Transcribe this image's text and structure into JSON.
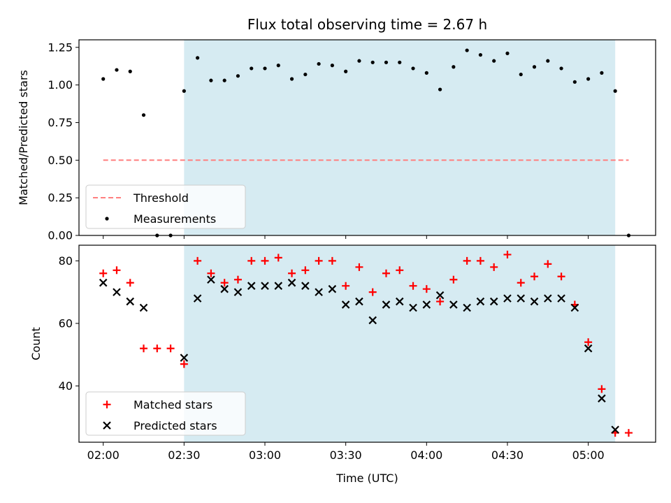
{
  "colors": {
    "threshold": "#ff7f7f",
    "measurements": "#000000",
    "matched": "#ff0000",
    "predicted": "#000000",
    "span_fill": "#add8e6"
  },
  "chart_data": [
    {
      "type": "scatter",
      "title": "Flux total observing time = 2.67 h",
      "xlabel": "",
      "ylabel": "Matched/Predicted stars",
      "ylim": [
        0,
        1.3
      ],
      "yticks": [
        "0.00",
        "0.25",
        "0.50",
        "0.75",
        "1.00",
        "1.25"
      ],
      "shaded_span_time": [
        "02:30",
        "05:10"
      ],
      "legend_position": "lower-left",
      "series": [
        {
          "name": "Threshold",
          "kind": "dashed-line",
          "x": [
            "02:00",
            "05:15"
          ],
          "y": [
            0.5,
            0.5
          ]
        },
        {
          "name": "Measurements",
          "kind": "dot",
          "x": [
            "02:00",
            "02:05",
            "02:10",
            "02:15",
            "02:20",
            "02:25",
            "02:30",
            "02:35",
            "02:40",
            "02:45",
            "02:50",
            "02:55",
            "03:00",
            "03:05",
            "03:10",
            "03:15",
            "03:20",
            "03:25",
            "03:30",
            "03:35",
            "03:40",
            "03:45",
            "03:50",
            "03:55",
            "04:00",
            "04:05",
            "04:10",
            "04:15",
            "04:20",
            "04:25",
            "04:30",
            "04:35",
            "04:40",
            "04:45",
            "04:50",
            "04:55",
            "05:00",
            "05:05",
            "05:10",
            "05:15"
          ],
          "y": [
            1.04,
            1.1,
            1.09,
            0.8,
            0.0,
            0.0,
            0.96,
            1.18,
            1.03,
            1.03,
            1.06,
            1.11,
            1.11,
            1.13,
            1.04,
            1.07,
            1.14,
            1.13,
            1.09,
            1.16,
            1.15,
            1.15,
            1.15,
            1.11,
            1.08,
            0.97,
            1.12,
            1.23,
            1.2,
            1.16,
            1.21,
            1.07,
            1.12,
            1.16,
            1.11,
            1.02,
            1.04,
            1.08,
            0.96,
            0.0
          ]
        }
      ]
    },
    {
      "type": "scatter",
      "title": "",
      "xlabel": "Time (UTC)",
      "ylabel": "Count",
      "ylim": [
        22,
        85
      ],
      "yticks": [
        "40",
        "60",
        "80"
      ],
      "xticks": [
        "02:00",
        "02:30",
        "03:00",
        "03:30",
        "04:00",
        "04:30",
        "05:00"
      ],
      "shaded_span_time": [
        "02:30",
        "05:10"
      ],
      "legend_position": "lower-left",
      "series": [
        {
          "name": "Matched stars",
          "kind": "plus",
          "x": [
            "02:00",
            "02:05",
            "02:10",
            "02:15",
            "02:20",
            "02:25",
            "02:30",
            "02:35",
            "02:40",
            "02:45",
            "02:50",
            "02:55",
            "03:00",
            "03:05",
            "03:10",
            "03:15",
            "03:20",
            "03:25",
            "03:30",
            "03:35",
            "03:40",
            "03:45",
            "03:50",
            "03:55",
            "04:00",
            "04:05",
            "04:10",
            "04:15",
            "04:20",
            "04:25",
            "04:30",
            "04:35",
            "04:40",
            "04:45",
            "04:50",
            "04:55",
            "05:00",
            "05:05",
            "05:10",
            "05:15"
          ],
          "y": [
            76,
            77,
            73,
            52,
            52,
            52,
            47,
            80,
            76,
            73,
            74,
            80,
            80,
            81,
            76,
            77,
            80,
            80,
            72,
            78,
            70,
            76,
            77,
            72,
            71,
            67,
            74,
            80,
            80,
            78,
            82,
            73,
            75,
            79,
            75,
            66,
            54,
            39,
            25,
            25
          ]
        },
        {
          "name": "Predicted stars",
          "kind": "x",
          "x": [
            "02:00",
            "02:05",
            "02:10",
            "02:15",
            "02:30",
            "02:35",
            "02:40",
            "02:45",
            "02:50",
            "02:55",
            "03:00",
            "03:05",
            "03:10",
            "03:15",
            "03:20",
            "03:25",
            "03:30",
            "03:35",
            "03:40",
            "03:45",
            "03:50",
            "03:55",
            "04:00",
            "04:05",
            "04:10",
            "04:15",
            "04:20",
            "04:25",
            "04:30",
            "04:35",
            "04:40",
            "04:45",
            "04:50",
            "04:55",
            "05:00",
            "05:05",
            "05:10"
          ],
          "y": [
            73,
            70,
            67,
            65,
            49,
            68,
            74,
            71,
            70,
            72,
            72,
            72,
            73,
            72,
            70,
            71,
            66,
            67,
            61,
            66,
            67,
            65,
            66,
            69,
            66,
            65,
            67,
            67,
            68,
            68,
            67,
            68,
            68,
            65,
            52,
            36,
            26
          ]
        }
      ]
    }
  ]
}
